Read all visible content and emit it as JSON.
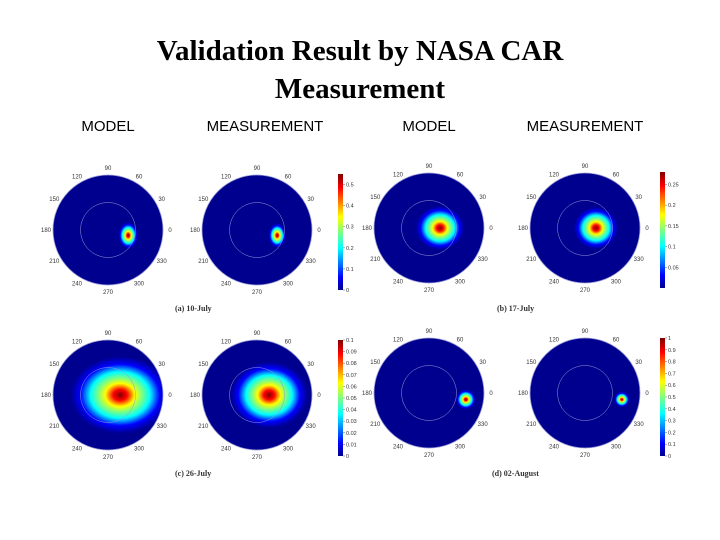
{
  "slide": {
    "title_line1": "Validation Result by NASA CAR",
    "title_line2": "Measurement",
    "column_headers": [
      "MODEL",
      "MEASUREMENT",
      "MODEL",
      "MEASUREMENT"
    ]
  },
  "chart_data": {
    "type": "heatmap",
    "projection": "polar",
    "angle_ticks": [
      "90",
      "60",
      "30",
      "0",
      "330",
      "300",
      "270",
      "240",
      "210",
      "180",
      "150",
      "120"
    ],
    "colormap": "jet",
    "panels": [
      {
        "caption": "(a) 10-July",
        "colorbar": {
          "min": 0,
          "max": 0.55,
          "ticks": [
            "0.5",
            "0.4",
            "0.3",
            "0.2",
            "0.1",
            "0"
          ]
        },
        "model": {
          "center_azimuth_deg": 345,
          "center_radius": 0.38,
          "spread_x": 0.09,
          "spread_y": 0.12,
          "peak": 1.0
        },
        "measurement": {
          "center_azimuth_deg": 345,
          "center_radius": 0.38,
          "spread_x": 0.08,
          "spread_y": 0.11,
          "peak": 1.0
        }
      },
      {
        "caption": "(b) 17-July",
        "colorbar": {
          "min": 0,
          "max": 0.28,
          "ticks": [
            "0.25",
            "0.2",
            "0.15",
            "0.1",
            "0.05"
          ]
        },
        "model": {
          "center_azimuth_deg": 0,
          "center_radius": 0.2,
          "spread_x": 0.22,
          "spread_y": 0.2,
          "peak": 1.0
        },
        "measurement": {
          "center_azimuth_deg": 0,
          "center_radius": 0.2,
          "spread_x": 0.2,
          "spread_y": 0.19,
          "peak": 1.0
        }
      },
      {
        "caption": "(c) 26-July",
        "colorbar": {
          "min": 0,
          "max": 0.1,
          "ticks": [
            "0.1",
            "0.09",
            "0.08",
            "0.07",
            "0.06",
            "0.05",
            "0.04",
            "0.03",
            "0.02",
            "0.01",
            "0"
          ]
        },
        "model": {
          "center_azimuth_deg": 0,
          "center_radius": 0.22,
          "spread_x": 0.45,
          "spread_y": 0.35,
          "peak": 1.0
        },
        "measurement": {
          "center_azimuth_deg": 0,
          "center_radius": 0.22,
          "spread_x": 0.35,
          "spread_y": 0.3,
          "peak": 1.0
        }
      },
      {
        "caption": "(d) 02-August",
        "colorbar": {
          "min": 0,
          "max": 1.0,
          "ticks": [
            "1",
            "0.9",
            "0.8",
            "0.7",
            "0.6",
            "0.5",
            "0.4",
            "0.3",
            "0.2",
            "0.1",
            "0"
          ]
        },
        "model": {
          "center_azimuth_deg": 350,
          "center_radius": 0.68,
          "spread_x": 0.09,
          "spread_y": 0.09,
          "peak": 1.0
        },
        "measurement": {
          "center_azimuth_deg": 350,
          "center_radius": 0.68,
          "spread_x": 0.07,
          "spread_y": 0.07,
          "peak": 1.0
        }
      }
    ]
  }
}
